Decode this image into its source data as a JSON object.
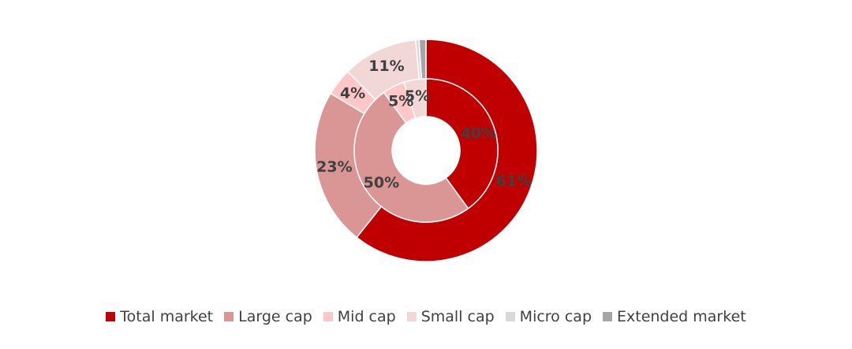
{
  "chart_data": {
    "type": "pie",
    "subtype": "doughnut-nested",
    "title": "",
    "categories": [
      "Total market",
      "Large cap",
      "Mid cap",
      "Small cap",
      "Micro cap",
      "Extended market"
    ],
    "colors": [
      "#C00000",
      "#D99694",
      "#FFC7C7",
      "#F2D7D7",
      "#D9D9D9",
      "#A6A6A6"
    ],
    "series": [
      {
        "ring": "outer",
        "values": [
          61,
          23,
          4,
          11,
          0.5,
          1
        ],
        "labels": [
          "61%",
          "23%",
          "4%",
          "11%",
          "",
          ""
        ]
      },
      {
        "ring": "inner",
        "values": [
          40,
          50,
          5,
          5,
          0,
          0
        ],
        "labels": [
          "40%",
          "50%",
          "5%",
          "5%",
          "",
          ""
        ]
      }
    ],
    "legend": {
      "position": "bottom",
      "entries": [
        "Total market",
        "Large cap",
        "Mid cap",
        "Small cap",
        "Micro cap",
        "Extended market"
      ]
    }
  }
}
